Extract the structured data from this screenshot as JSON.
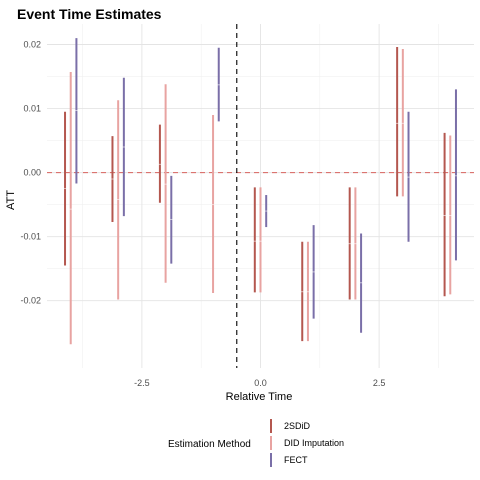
{
  "chart_data": {
    "type": "errorbar",
    "title": "Event Time Estimates",
    "xlabel": "Relative Time",
    "ylabel": "ATT",
    "xlim": [
      -4.5,
      4.5
    ],
    "ylim": [
      -0.0305,
      0.0232
    ],
    "x_ticks": [
      -2.5,
      0.0,
      2.5
    ],
    "x_tick_labels": [
      "-2.5",
      "0.0",
      "2.5"
    ],
    "y_ticks": [
      -0.02,
      -0.01,
      0.0,
      0.01,
      0.02
    ],
    "y_tick_labels": [
      "-0.02",
      "-0.01",
      "0.00",
      "0.01",
      "0.02"
    ],
    "reference_hline": 0.0,
    "reference_vline": -0.5,
    "grid": true,
    "legend": {
      "title": "Estimation Method",
      "position": "bottom",
      "entries": [
        "2SDiD",
        "DID Imputation",
        "FECT"
      ]
    },
    "series": [
      {
        "name": "2SDiD",
        "color": "#b4574f",
        "points": [
          {
            "x": -4,
            "est": -0.0025,
            "lo": -0.0145,
            "hi": 0.0095
          },
          {
            "x": -3,
            "est": -0.001,
            "lo": -0.0077,
            "hi": 0.0057
          },
          {
            "x": -2,
            "est": 0.0013,
            "lo": -0.0047,
            "hi": 0.0075
          },
          {
            "x": 0,
            "est": -0.0107,
            "lo": -0.0187,
            "hi": -0.0023
          },
          {
            "x": 1,
            "est": -0.0186,
            "lo": -0.0263,
            "hi": -0.0108
          },
          {
            "x": 2,
            "est": -0.0111,
            "lo": -0.0198,
            "hi": -0.0023
          },
          {
            "x": 3,
            "est": 0.0077,
            "lo": -0.0037,
            "hi": 0.0196
          },
          {
            "x": 4,
            "est": -0.0067,
            "lo": -0.0193,
            "hi": 0.0062
          }
        ]
      },
      {
        "name": "DID Imputation",
        "color": "#e8a3a1",
        "points": [
          {
            "x": -4,
            "est": -0.0057,
            "lo": -0.0268,
            "hi": 0.0157
          },
          {
            "x": -3,
            "est": -0.0042,
            "lo": -0.0198,
            "hi": 0.0113
          },
          {
            "x": -2,
            "est": -0.0018,
            "lo": -0.0172,
            "hi": 0.0138
          },
          {
            "x": -1,
            "est": -0.005,
            "lo": -0.0188,
            "hi": 0.009
          },
          {
            "x": 0,
            "est": -0.0107,
            "lo": -0.0187,
            "hi": -0.0023
          },
          {
            "x": 1,
            "est": -0.0186,
            "lo": -0.0263,
            "hi": -0.0108
          },
          {
            "x": 2,
            "est": -0.0111,
            "lo": -0.0198,
            "hi": -0.0023
          },
          {
            "x": 3,
            "est": 0.0077,
            "lo": -0.0037,
            "hi": 0.0193
          },
          {
            "x": 4,
            "est": -0.0067,
            "lo": -0.019,
            "hi": 0.0058
          }
        ]
      },
      {
        "name": "FECT",
        "color": "#7a6fa8",
        "points": [
          {
            "x": -4,
            "est": 0.0097,
            "lo": -0.0017,
            "hi": 0.021
          },
          {
            "x": -3,
            "est": 0.004,
            "lo": -0.0068,
            "hi": 0.0148
          },
          {
            "x": -2,
            "est": -0.0073,
            "lo": -0.0142,
            "hi": -0.0005
          },
          {
            "x": -1,
            "est": 0.0137,
            "lo": 0.008,
            "hi": 0.0195
          },
          {
            "x": 0,
            "est": -0.006,
            "lo": -0.0085,
            "hi": -0.0035
          },
          {
            "x": 1,
            "est": -0.0155,
            "lo": -0.0228,
            "hi": -0.0082
          },
          {
            "x": 2,
            "est": -0.0172,
            "lo": -0.025,
            "hi": -0.0095
          },
          {
            "x": 3,
            "est": -0.0007,
            "lo": -0.0108,
            "hi": 0.0095
          },
          {
            "x": 4,
            "est": -0.0005,
            "lo": -0.0137,
            "hi": 0.013
          }
        ]
      }
    ]
  }
}
